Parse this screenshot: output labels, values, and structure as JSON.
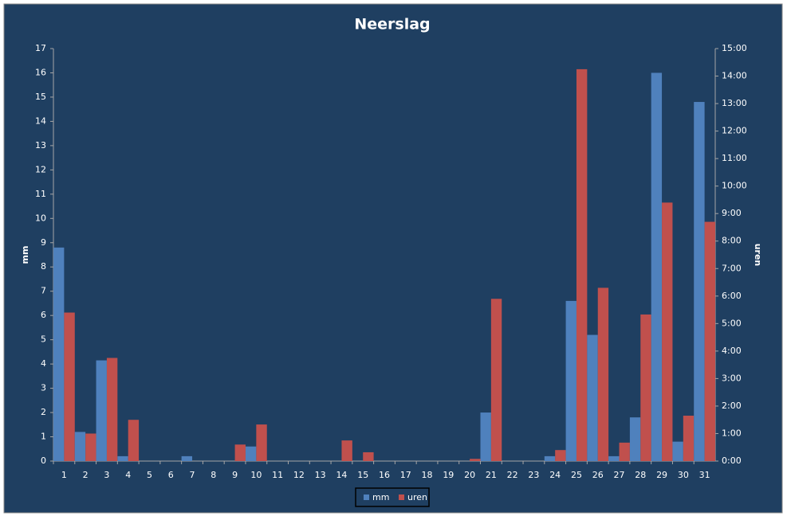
{
  "chart_data": {
    "type": "bar",
    "title": "Neerslag",
    "ylabel": "mm",
    "y2label": "uren",
    "categories": [
      "1",
      "2",
      "3",
      "4",
      "5",
      "6",
      "7",
      "8",
      "9",
      "10",
      "11",
      "12",
      "13",
      "14",
      "15",
      "16",
      "17",
      "18",
      "19",
      "20",
      "21",
      "22",
      "23",
      "24",
      "25",
      "26",
      "27",
      "28",
      "29",
      "30",
      "31"
    ],
    "series": [
      {
        "name": "mm",
        "color": "#4f81bd",
        "values": [
          8.8,
          1.2,
          4.15,
          0.2,
          0,
          0,
          0.2,
          0,
          0,
          0.6,
          0,
          0,
          0,
          0,
          0,
          0,
          0,
          0,
          0,
          0,
          2.0,
          0,
          0,
          0.2,
          6.6,
          5.2,
          0.2,
          1.8,
          16.0,
          0.8,
          14.8
        ]
      },
      {
        "name": "uren",
        "color": "#c0504d",
        "axis": "y2",
        "values": [
          5.4,
          1.0,
          3.75,
          1.5,
          0,
          0,
          0,
          0,
          0.6,
          1.33,
          0,
          0,
          0,
          0.75,
          0.32,
          0,
          0,
          0,
          0,
          0.08,
          5.9,
          0,
          0,
          0.4,
          14.25,
          6.3,
          0.67,
          5.33,
          9.4,
          1.65,
          8.7
        ]
      }
    ],
    "ylim": [
      0,
      17
    ],
    "yticks": [
      0,
      1,
      2,
      3,
      4,
      5,
      6,
      7,
      8,
      9,
      10,
      11,
      12,
      13,
      14,
      15,
      16,
      17
    ],
    "y2lim": [
      0,
      15
    ],
    "y2ticks": [
      {
        "value": 0,
        "label": "0:00"
      },
      {
        "value": 1,
        "label": "1:00"
      },
      {
        "value": 2,
        "label": "2:00"
      },
      {
        "value": 3,
        "label": "3:00"
      },
      {
        "value": 4,
        "label": "4:00"
      },
      {
        "value": 5,
        "label": "5:00"
      },
      {
        "value": 6,
        "label": "6:00"
      },
      {
        "value": 7,
        "label": "7:00"
      },
      {
        "value": 8,
        "label": "8:00"
      },
      {
        "value": 9,
        "label": "9:00"
      },
      {
        "value": 10,
        "label": "10:00"
      },
      {
        "value": 11,
        "label": "11:00"
      },
      {
        "value": 12,
        "label": "12:00"
      },
      {
        "value": 13,
        "label": "13:00"
      },
      {
        "value": 14,
        "label": "14:00"
      },
      {
        "value": 15,
        "label": "15:00"
      }
    ],
    "legend": "bottom"
  }
}
